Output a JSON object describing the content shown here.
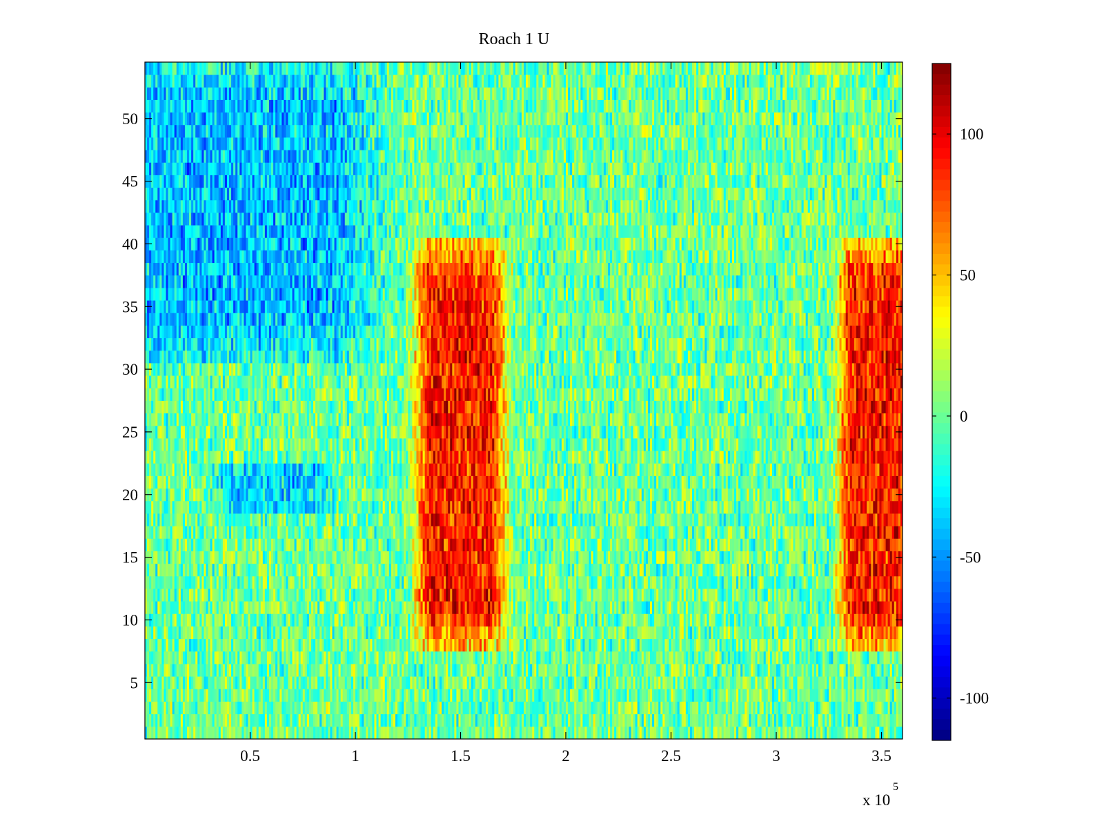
{
  "chart_data": {
    "type": "heatmap",
    "title": "Roach 1 U",
    "xlabel": "",
    "ylabel": "",
    "x_multiplier_label": "x 10",
    "x_multiplier_exponent": "5",
    "xlim": [
      0,
      360000
    ],
    "ylim": [
      0.5,
      54.5
    ],
    "x_tick_values": [
      50000,
      100000,
      150000,
      200000,
      250000,
      300000,
      350000
    ],
    "x_tick_labels": [
      "0.5",
      "1",
      "1.5",
      "2",
      "2.5",
      "3",
      "3.5"
    ],
    "y_tick_values": [
      5,
      10,
      15,
      20,
      25,
      30,
      35,
      40,
      45,
      50
    ],
    "y_tick_labels": [
      "5",
      "10",
      "15",
      "20",
      "25",
      "30",
      "35",
      "40",
      "45",
      "50"
    ],
    "rows": 54,
    "colormap": "jet",
    "clim": [
      -115,
      125
    ],
    "colorbar": {
      "tick_values": [
        -100,
        -50,
        0,
        50,
        100
      ],
      "tick_labels": [
        "-100",
        "-50",
        "0",
        "50",
        "100"
      ]
    },
    "regions": [
      {
        "x_range": [
          135000,
          165000
        ],
        "rows": [
          8,
          40
        ],
        "level": "high",
        "approx_value": 90
      },
      {
        "x_range": [
          335000,
          360000
        ],
        "rows": [
          8,
          40
        ],
        "level": "high",
        "approx_value": 90
      },
      {
        "x_range": [
          0,
          90000
        ],
        "rows": [
          31,
          54
        ],
        "level": "low",
        "approx_value": -40
      },
      {
        "x_range": [
          40000,
          80000
        ],
        "rows": [
          19,
          22
        ],
        "level": "low",
        "approx_value": -35
      }
    ],
    "background_value": 0
  }
}
